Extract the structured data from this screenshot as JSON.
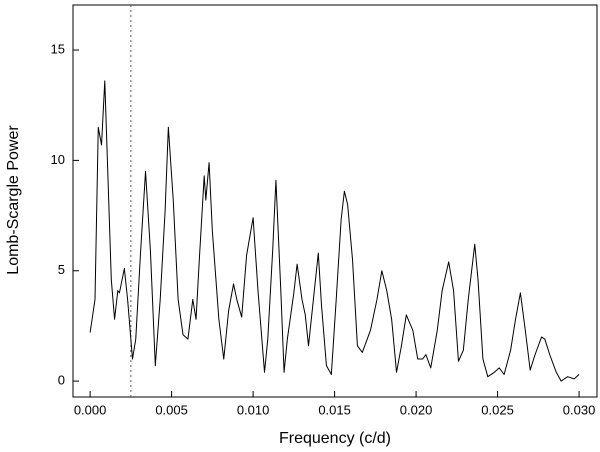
{
  "chart_data": {
    "type": "line",
    "x_label": "Frequency (c/d)",
    "y_label": "Lomb-Scargle Power",
    "color": "#000000",
    "marker_x": 0.0025,
    "xlim": [
      -0.00105,
      0.0311
    ],
    "ylim": [
      -0.72,
      17.04
    ],
    "xticks": [
      {
        "value": 0,
        "label": "0.000"
      },
      {
        "value": 0.005,
        "label": "0.005"
      },
      {
        "value": 0.01,
        "label": "0.010"
      },
      {
        "value": 0.015,
        "label": "0.015"
      },
      {
        "value": 0.02,
        "label": "0.020"
      },
      {
        "value": 0.025,
        "label": "0.025"
      },
      {
        "value": 0.03,
        "label": "0.030"
      }
    ],
    "yticks": [
      0,
      5,
      10,
      15
    ],
    "x": [
      0,
      0.0003,
      0.0005,
      0.0007,
      0.0009,
      0.0011,
      0.0013,
      0.0015,
      0.0017,
      0.0018,
      0.0021,
      0.0023,
      0.0026,
      0.0028,
      0.0031,
      0.0034,
      0.0037,
      0.004,
      0.0043,
      0.0046,
      0.0048,
      0.0051,
      0.0054,
      0.0057,
      0.006,
      0.0063,
      0.0065,
      0.0067,
      0.007,
      0.0071,
      0.0073,
      0.0075,
      0.0079,
      0.0082,
      0.0085,
      0.0088,
      0.009,
      0.0093,
      0.0096,
      0.01,
      0.0103,
      0.0107,
      0.0109,
      0.0112,
      0.0114,
      0.0117,
      0.0119,
      0.0121,
      0.0125,
      0.0127,
      0.013,
      0.0132,
      0.0134,
      0.0137,
      0.014,
      0.0142,
      0.0145,
      0.0148,
      0.0151,
      0.0154,
      0.0156,
      0.0158,
      0.0161,
      0.0164,
      0.0167,
      0.0172,
      0.0176,
      0.0179,
      0.0182,
      0.0185,
      0.0188,
      0.0191,
      0.0194,
      0.0198,
      0.0201,
      0.0204,
      0.0206,
      0.0209,
      0.0213,
      0.0216,
      0.022,
      0.0223,
      0.0226,
      0.0229,
      0.0232,
      0.0236,
      0.0238,
      0.0241,
      0.0244,
      0.0248,
      0.0251,
      0.0254,
      0.0258,
      0.0261,
      0.0264,
      0.0267,
      0.027,
      0.0273,
      0.0277,
      0.0279,
      0.0282,
      0.0286,
      0.0289,
      0.0293,
      0.0297,
      0.03
    ],
    "values": [
      2.2,
      3.7,
      11.5,
      10.7,
      13.6,
      9.1,
      4.6,
      2.8,
      4.1,
      4.0,
      5.1,
      3.7,
      1.0,
      1.9,
      5.9,
      9.5,
      5.9,
      0.7,
      3.7,
      7.7,
      11.5,
      8.2,
      3.7,
      2.1,
      1.9,
      3.7,
      2.8,
      5.5,
      9.3,
      8.2,
      9.9,
      6.8,
      2.8,
      1.0,
      3.2,
      4.4,
      3.7,
      2.9,
      5.7,
      7.4,
      4.1,
      0.4,
      1.9,
      5.9,
      9.1,
      4.1,
      0.4,
      1.9,
      4.0,
      5.3,
      3.7,
      3.0,
      1.6,
      3.7,
      5.8,
      3.4,
      0.7,
      0.3,
      3.7,
      7.3,
      8.6,
      8.0,
      5.5,
      1.6,
      1.3,
      2.3,
      3.7,
      5.0,
      4.1,
      2.8,
      0.4,
      1.6,
      3.0,
      2.3,
      1.0,
      1.0,
      1.2,
      0.6,
      2.3,
      4.1,
      5.4,
      4.1,
      0.9,
      1.4,
      3.7,
      6.2,
      4.6,
      1.0,
      0.2,
      0.4,
      0.6,
      0.3,
      1.4,
      2.8,
      4.0,
      2.3,
      0.5,
      1.2,
      2.0,
      1.9,
      1.2,
      0.4,
      0.0,
      0.2,
      0.1,
      0.3
    ]
  }
}
